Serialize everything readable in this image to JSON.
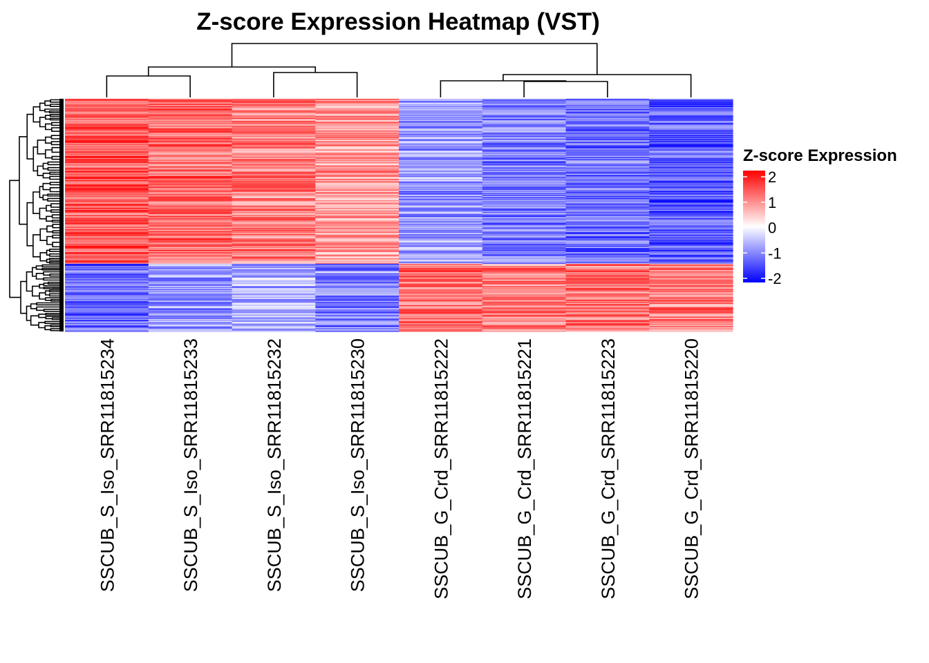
{
  "chart_data": {
    "type": "heatmap",
    "title": "Z-score Expression Heatmap (VST)",
    "columns": [
      "SSCUB_S_Iso_SRR11815234",
      "SSCUB_S_Iso_SRR11815233",
      "SSCUB_S_Iso_SRR11815232",
      "SSCUB_S_Iso_SRR11815230",
      "SSCUB_G_Crd_SRR11815222",
      "SSCUB_G_Crd_SRR11815221",
      "SSCUB_G_Crd_SRR11815223",
      "SSCUB_G_Crd_SRR11815220"
    ],
    "row_clusters": [
      {
        "cluster": "A",
        "approx_fraction_of_rows": 0.71,
        "mean_z": [
          1.3,
          1.2,
          1.0,
          0.8,
          -0.8,
          -1.0,
          -1.1,
          -1.3
        ]
      },
      {
        "cluster": "B",
        "approx_fraction_of_rows": 0.29,
        "mean_z": [
          -1.2,
          -0.8,
          -0.6,
          -0.9,
          1.1,
          1.0,
          1.1,
          1.0
        ]
      }
    ],
    "column_dendrogram": "((SSCUB_S_Iso_SRR11815234,SSCUB_S_Iso_SRR11815233),(SSCUB_S_Iso_SRR11815232,SSCUB_S_Iso_SRR11815230)),((SSCUB_G_Crd_SRR11815222,(SSCUB_G_Crd_SRR11815221,SSCUB_G_Crd_SRR11815223)),SSCUB_G_Crd_SRR11815220)",
    "row_dendrogram": "shown (left)",
    "legend": {
      "title": "Z-score Expression",
      "ticks": [
        "2",
        "1",
        "0",
        "-1",
        "-2"
      ],
      "range": [
        -2,
        2
      ],
      "colors": {
        "low": "#0000ff",
        "mid": "#ffffff",
        "high": "#ff0000"
      },
      "placement": "right"
    }
  }
}
